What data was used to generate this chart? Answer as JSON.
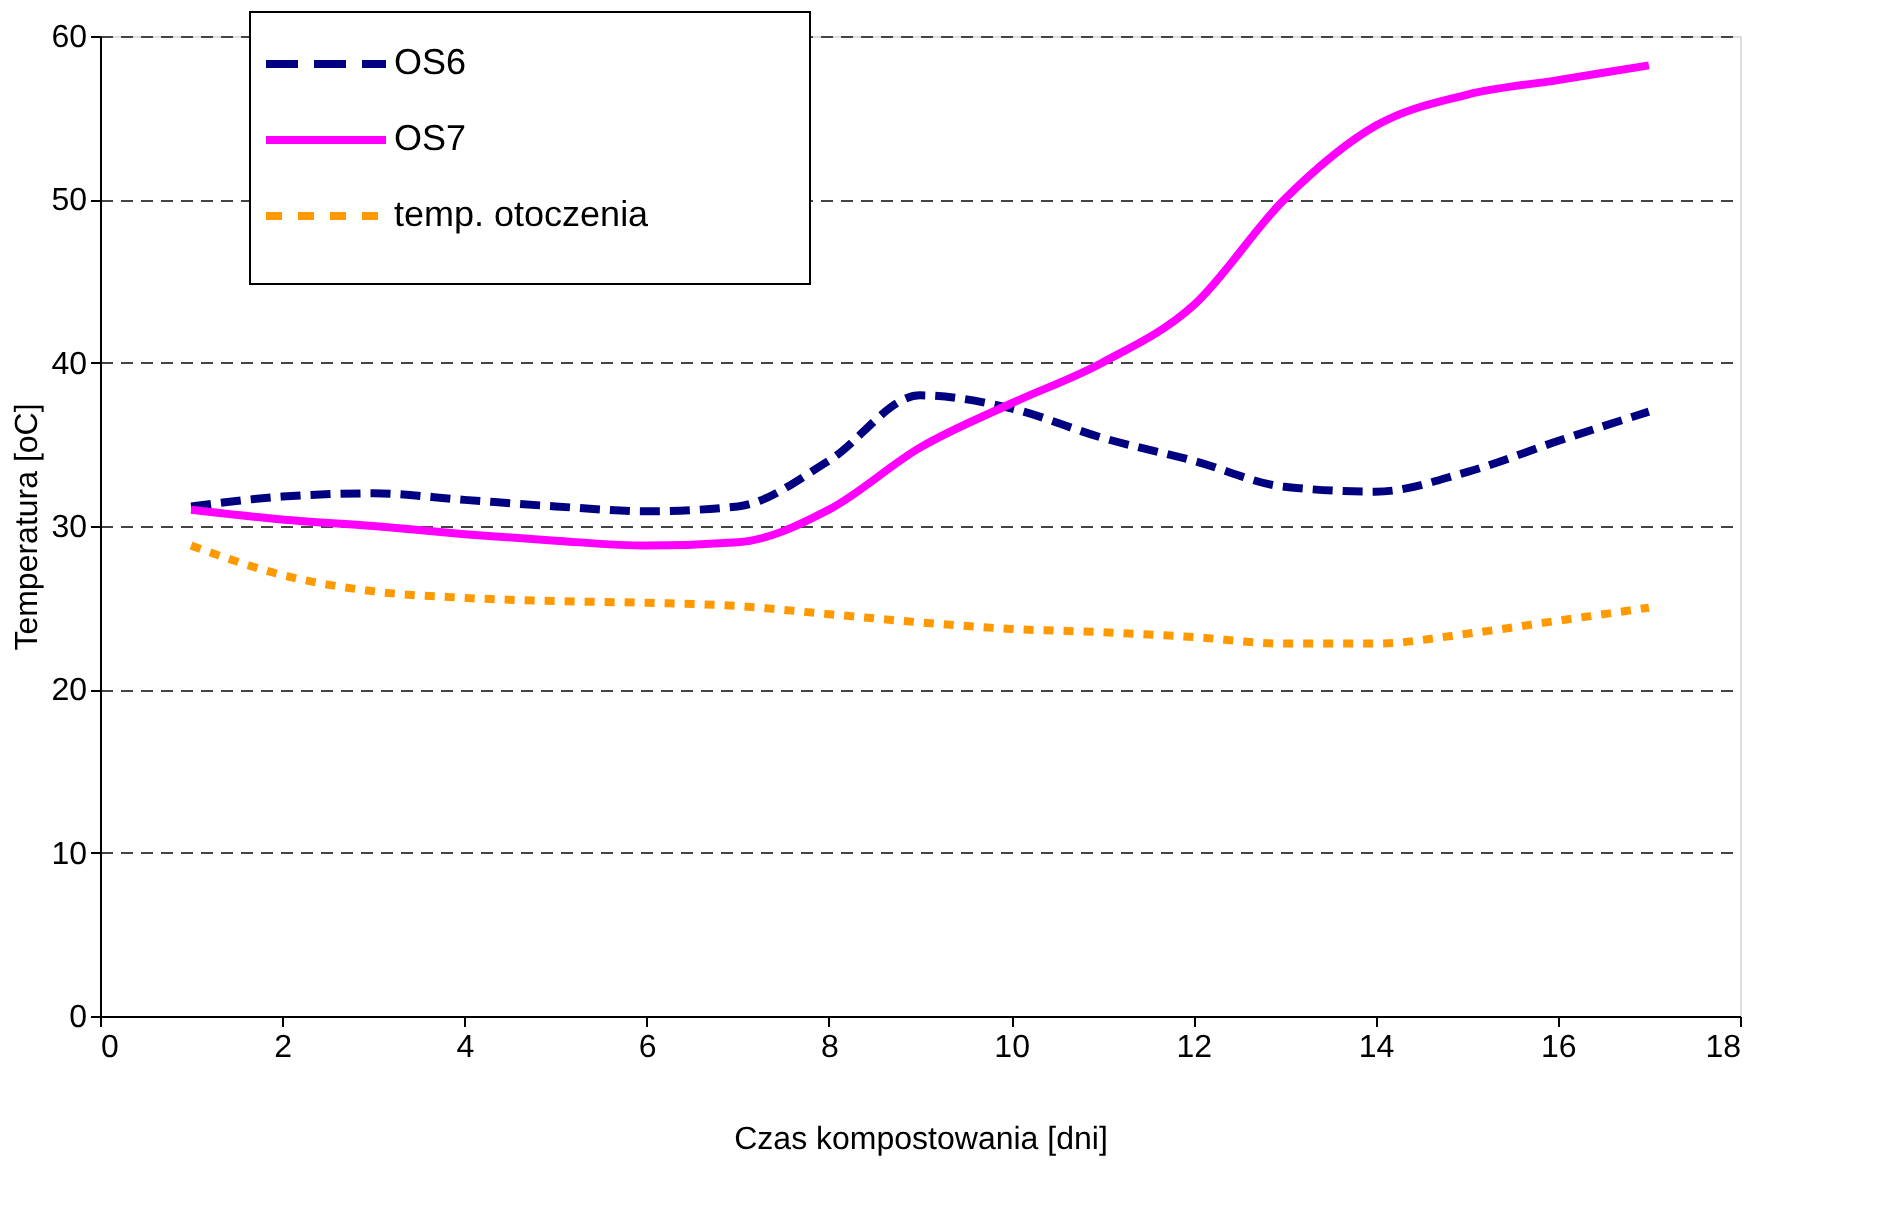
{
  "chart_data": {
    "type": "line",
    "xlabel": "Czas kompostowania [dni]",
    "ylabel": "Temperatura [oC]",
    "x": [
      1,
      2,
      3,
      4,
      5,
      6,
      7,
      8,
      9,
      10,
      11,
      12,
      13,
      14,
      15,
      16,
      17
    ],
    "series": [
      {
        "name": "OS6",
        "color": "#000080",
        "line_style": "dashed",
        "values": [
          31.2,
          31.8,
          32.0,
          31.6,
          31.2,
          30.9,
          31.2,
          34.0,
          38.0,
          37.2,
          35.4,
          34.0,
          32.4,
          32.1,
          33.3,
          35.2,
          37.0
        ]
      },
      {
        "name": "OS7",
        "color": "#ff00ff",
        "line_style": "solid",
        "values": [
          31.0,
          30.4,
          30.0,
          29.5,
          29.1,
          28.8,
          29.0,
          31.0,
          34.8,
          37.5,
          40.0,
          43.5,
          50.0,
          54.5,
          56.4,
          57.3,
          58.2
        ]
      },
      {
        "name": "temp. otoczenia",
        "color": "#ff9900",
        "line_style": "dotted",
        "values": [
          28.8,
          27.0,
          26.0,
          25.6,
          25.4,
          25.3,
          25.1,
          24.6,
          24.1,
          23.7,
          23.5,
          23.2,
          22.8,
          22.8,
          23.4,
          24.2,
          25.0
        ]
      }
    ],
    "xlim": [
      0,
      18
    ],
    "xticks": [
      0,
      2,
      4,
      6,
      8,
      10,
      12,
      14,
      16,
      18
    ],
    "ylim": [
      0,
      60
    ],
    "yticks": [
      0,
      10,
      20,
      30,
      40,
      50,
      60
    ],
    "grid": "y",
    "legend": "top left",
    "marker": "none"
  }
}
